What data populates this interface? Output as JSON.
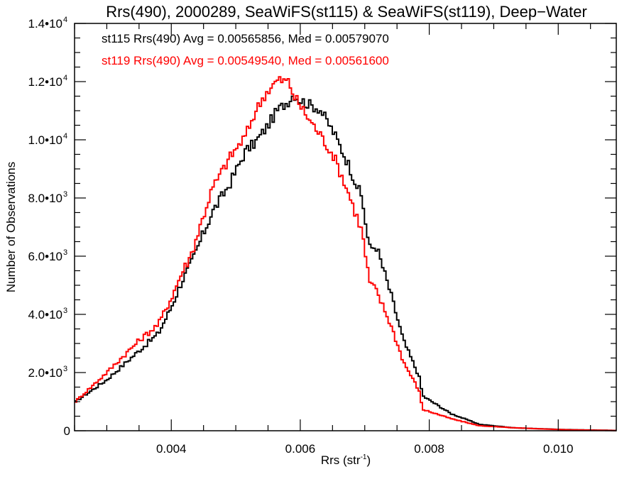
{
  "chart_data": {
    "type": "line",
    "style": "step-histogram",
    "title": "Rrs(490), 2000289, SeaWiFS(st115) & SeaWiFS(st119), Deep−Water",
    "xlabel": "Rrs (str",
    "xlabel_sup": "-1",
    "xlabel_end": ")",
    "ylabel": "Number of Observations",
    "xlim": [
      0.0025,
      0.0109
    ],
    "ylim": [
      0,
      14000
    ],
    "grid": false,
    "x_ticks": [
      {
        "value": 0.004,
        "label": "0.004"
      },
      {
        "value": 0.006,
        "label": "0.006"
      },
      {
        "value": 0.008,
        "label": "0.008"
      },
      {
        "value": 0.01,
        "label": "0.010"
      }
    ],
    "x_minor_step": 0.0005,
    "y_ticks": [
      {
        "value": 0,
        "mant": "0",
        "exp": ""
      },
      {
        "value": 2000,
        "mant": "2.0•10",
        "exp": "3"
      },
      {
        "value": 4000,
        "mant": "4.0•10",
        "exp": "3"
      },
      {
        "value": 6000,
        "mant": "6.0•10",
        "exp": "3"
      },
      {
        "value": 8000,
        "mant": "8.0•10",
        "exp": "3"
      },
      {
        "value": 10000,
        "mant": "1.0•10",
        "exp": "4"
      },
      {
        "value": 12000,
        "mant": "1.2•10",
        "exp": "4"
      },
      {
        "value": 14000,
        "mant": "1.4•10",
        "exp": "4"
      }
    ],
    "y_minor_step": 500,
    "legend_position": "top-left",
    "legend": [
      {
        "text": "st115 Rrs(490) Avg = 0.00565856, Med = 0.00579070",
        "color": "#000000"
      },
      {
        "text": "st119 Rrs(490) Avg = 0.00549540, Med = 0.00561600",
        "color": "#ff0000"
      }
    ],
    "series": [
      {
        "name": "st115",
        "color": "#000000",
        "x": [
          0.0025,
          0.003,
          0.0035,
          0.0038,
          0.004,
          0.00417,
          0.0043,
          0.00463,
          0.0049,
          0.00515,
          0.0053,
          0.00546,
          0.00565,
          0.00582,
          0.0059,
          0.00597,
          0.00615,
          0.0063,
          0.00652,
          0.00674,
          0.00696,
          0.00707,
          0.00718,
          0.0074,
          0.0076,
          0.00784,
          0.0079,
          0.00834,
          0.00878,
          0.00932,
          0.0101,
          0.0109
        ],
        "values": [
          975,
          1750,
          2750,
          3340,
          4240,
          5170,
          5700,
          7490,
          8460,
          9610,
          9900,
          10370,
          11020,
          11340,
          11580,
          11400,
          11195,
          11070,
          10240,
          9195,
          7976,
          6270,
          6341,
          4730,
          3100,
          1880,
          1195,
          585,
          220,
          100,
          40,
          10
        ]
      },
      {
        "name": "st119",
        "color": "#ff0000",
        "x": [
          0.0025,
          0.003,
          0.0035,
          0.0038,
          0.004,
          0.00417,
          0.0043,
          0.00463,
          0.0049,
          0.00515,
          0.0053,
          0.00546,
          0.00565,
          0.00582,
          0.0059,
          0.00597,
          0.00615,
          0.0063,
          0.00652,
          0.00674,
          0.00696,
          0.00707,
          0.00718,
          0.0074,
          0.0076,
          0.00784,
          0.0079,
          0.00834,
          0.00878,
          0.00932,
          0.0101,
          0.0109
        ],
        "values": [
          975,
          2000,
          3100,
          3660,
          4560,
          5460,
          6000,
          8290,
          9370,
          10120,
          10950,
          11590,
          12050,
          12000,
          11510,
          11270,
          10660,
          10200,
          9440,
          8220,
          6830,
          5120,
          4800,
          3660,
          2370,
          1390,
          732,
          415,
          171,
          100,
          35,
          8
        ]
      }
    ]
  }
}
